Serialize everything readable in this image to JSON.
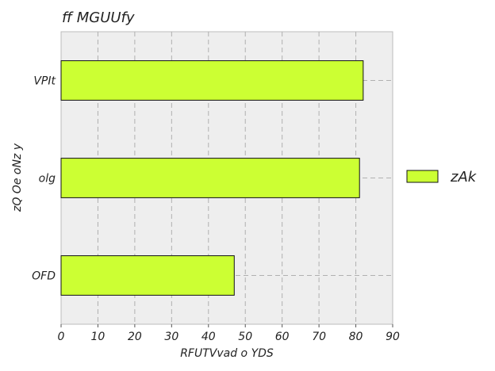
{
  "chart_data": {
    "type": "bar",
    "orientation": "horizontal",
    "title": "ff MGUUfy",
    "xlabel": "RFUTVvad o YDS",
    "ylabel": "zQ Oe oNz y",
    "categories": [
      "OFD",
      "olg",
      "VPIt"
    ],
    "series": [
      {
        "name": "zAk",
        "values": [
          47,
          81,
          82
        ],
        "color": "#ccff33"
      }
    ],
    "xlim": [
      0,
      90
    ],
    "xticks": [
      "0",
      "10",
      "20",
      "30",
      "40",
      "50",
      "60",
      "70",
      "80",
      "90"
    ],
    "grid": true,
    "legend": "right",
    "background": "#eeeeee"
  }
}
